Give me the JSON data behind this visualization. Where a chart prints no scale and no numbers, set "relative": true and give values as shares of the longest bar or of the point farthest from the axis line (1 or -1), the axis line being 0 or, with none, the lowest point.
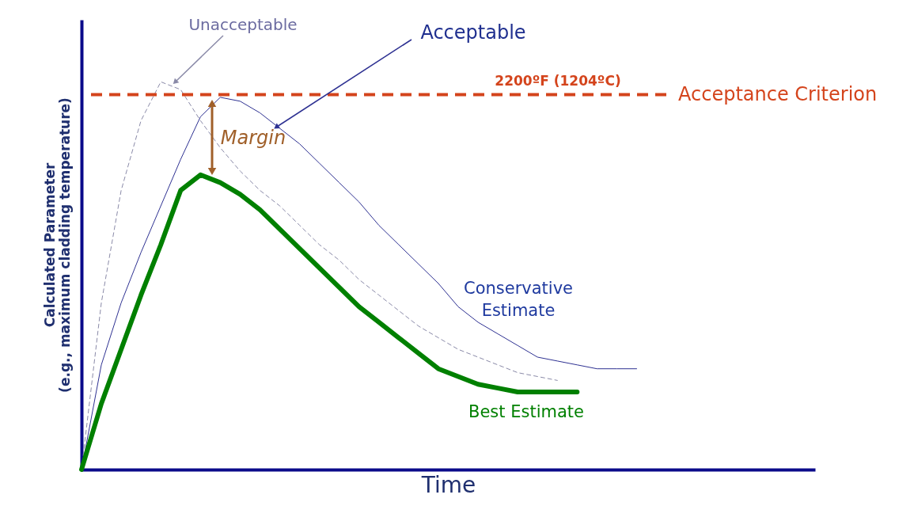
{
  "chart_data": {
    "type": "line",
    "relative": true,
    "xlabel": "Time",
    "ylabel": "Calculated Parameter\n(e.g., maximum cladding temperature)",
    "tick_labels": false,
    "categories": [
      null,
      null,
      null,
      null,
      null,
      null,
      null,
      null,
      null,
      null,
      null,
      null,
      null,
      null,
      null,
      null,
      null,
      null,
      null,
      null,
      null,
      null,
      null,
      null,
      null,
      null,
      null,
      null,
      null,
      null,
      null,
      null,
      null,
      null,
      null,
      null,
      null,
      null
    ],
    "series": [
      {
        "name": "Unacceptable",
        "color": "#8a8aa8",
        "line_style": "dashed",
        "values": [
          0,
          0.43,
          0.72,
          0.9,
          1.0,
          0.98,
          0.9,
          0.83,
          0.77,
          0.72,
          0.68,
          0.63,
          0.58,
          0.54,
          0.49,
          0.45,
          0.41,
          0.37,
          0.34,
          0.31,
          0.29,
          0.27,
          0.25,
          0.24,
          0.23,
          null,
          null,
          null,
          null,
          null,
          null,
          null,
          null,
          null,
          null,
          null,
          null,
          null
        ]
      },
      {
        "name": "Conservative\nEstimate",
        "color": "#2e3192",
        "line_style": "solid",
        "values": [
          0,
          0.27,
          0.43,
          0.56,
          0.68,
          0.8,
          0.91,
          0.96,
          0.95,
          0.92,
          0.88,
          0.84,
          0.79,
          0.74,
          0.69,
          0.63,
          0.58,
          0.53,
          0.48,
          0.42,
          0.38,
          0.35,
          0.32,
          0.29,
          0.28,
          0.27,
          0.26,
          0.26,
          0.26,
          null,
          null,
          null,
          null,
          null,
          null,
          null,
          null,
          null
        ]
      },
      {
        "name": "Best Estimate",
        "color": "#008000",
        "line_style": "solid",
        "values": [
          0,
          0.17,
          0.31,
          0.45,
          0.58,
          0.72,
          0.76,
          0.74,
          0.71,
          0.67,
          0.62,
          0.57,
          0.52,
          0.47,
          0.42,
          0.38,
          0.34,
          0.3,
          0.26,
          0.24,
          0.22,
          0.21,
          0.2,
          0.2,
          0.2,
          0.2,
          null,
          null,
          null,
          null,
          null,
          null,
          null,
          null,
          null,
          null,
          null,
          null
        ]
      }
    ],
    "ref_lines": [
      {
        "axis": "y",
        "value": 0.967,
        "label": "Acceptance Criterion",
        "color": "#d4441c",
        "line_style": "dashed"
      }
    ],
    "annotations": [
      "Acceptable",
      "Margin",
      "2200ºF (1204ºC)"
    ]
  }
}
